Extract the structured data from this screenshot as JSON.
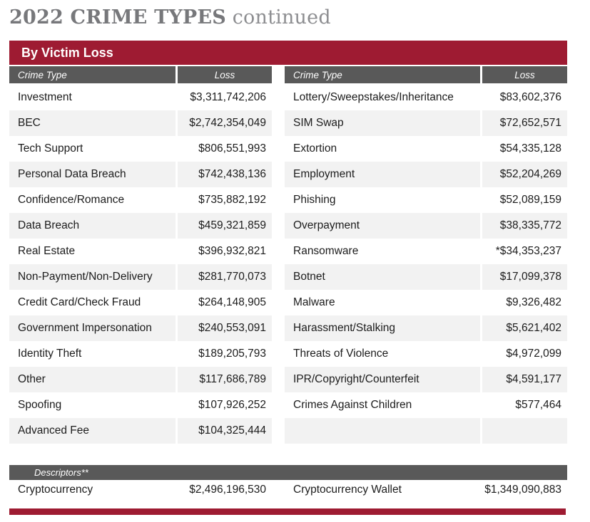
{
  "title": {
    "main": "2022 CRIME TYPES",
    "suffix": "continued"
  },
  "section": {
    "banner": "By Victim Loss",
    "columns": {
      "crime_type": "Crime Type",
      "loss": "Loss"
    }
  },
  "left_table": {
    "rows": [
      {
        "type": "Investment",
        "loss": "$3,311,742,206"
      },
      {
        "type": "BEC",
        "loss": "$2,742,354,049"
      },
      {
        "type": "Tech Support",
        "loss": "$806,551,993"
      },
      {
        "type": "Personal Data Breach",
        "loss": "$742,438,136"
      },
      {
        "type": "Confidence/Romance",
        "loss": "$735,882,192"
      },
      {
        "type": "Data Breach",
        "loss": "$459,321,859"
      },
      {
        "type": "Real Estate",
        "loss": "$396,932,821"
      },
      {
        "type": "Non-Payment/Non-Delivery",
        "loss": "$281,770,073"
      },
      {
        "type": "Credit Card/Check Fraud",
        "loss": "$264,148,905"
      },
      {
        "type": "Government Impersonation",
        "loss": "$240,553,091"
      },
      {
        "type": "Identity Theft",
        "loss": "$189,205,793"
      },
      {
        "type": "Other",
        "loss": "$117,686,789"
      },
      {
        "type": "Spoofing",
        "loss": "$107,926,252"
      },
      {
        "type": "Advanced Fee",
        "loss": "$104,325,444"
      }
    ]
  },
  "right_table": {
    "rows": [
      {
        "type": "Lottery/Sweepstakes/Inheritance",
        "loss": "$83,602,376"
      },
      {
        "type": "SIM Swap",
        "loss": "$72,652,571"
      },
      {
        "type": "Extortion",
        "loss": "$54,335,128"
      },
      {
        "type": "Employment",
        "loss": "$52,204,269"
      },
      {
        "type": "Phishing",
        "loss": "$52,089,159"
      },
      {
        "type": "Overpayment",
        "loss": "$38,335,772"
      },
      {
        "type": "Ransomware",
        "loss": "*$34,353,237"
      },
      {
        "type": "Botnet",
        "loss": "$17,099,378"
      },
      {
        "type": "Malware",
        "loss": "$9,326,482"
      },
      {
        "type": "Harassment/Stalking",
        "loss": "$5,621,402"
      },
      {
        "type": "Threats of Violence",
        "loss": "$4,972,099"
      },
      {
        "type": "IPR/Copyright/Counterfeit",
        "loss": "$4,591,177"
      },
      {
        "type": "Crimes Against Children",
        "loss": "$577,464"
      },
      {
        "type": "",
        "loss": ""
      }
    ]
  },
  "descriptors": {
    "label": "Descriptors**",
    "rows": [
      {
        "type": "Cryptocurrency",
        "loss": "$2,496,196,530"
      },
      {
        "type": "Cryptocurrency Wallet",
        "loss": "$1,349,090,883"
      }
    ]
  },
  "colors": {
    "maroon": "#9e1b32",
    "header_gray": "#595959",
    "row_alt": "#f2f2f2",
    "title_gray": "#77787b"
  }
}
